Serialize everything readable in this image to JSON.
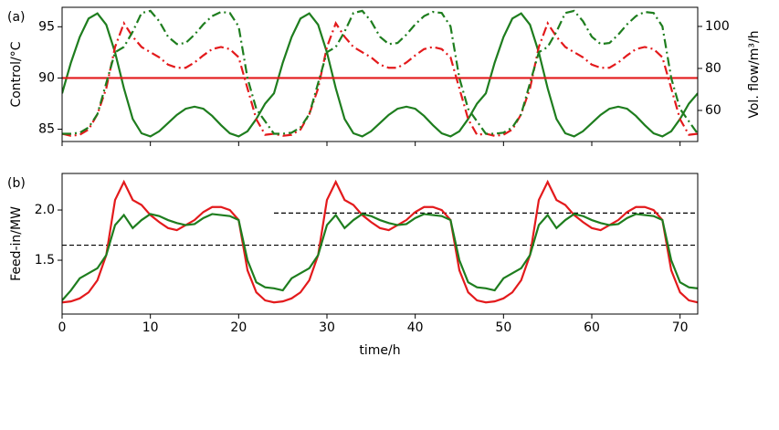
{
  "chart_data": [
    {
      "type": "line",
      "annotation": "(a)",
      "ylabel": "Control/°C",
      "y2label": "Vol. flow/m³/h",
      "xlim": [
        0,
        72
      ],
      "xticks": [
        0,
        10,
        20,
        30,
        40,
        50,
        60,
        70
      ],
      "xtick_labels": false,
      "ylim": [
        83.8,
        96.9
      ],
      "yticks": [
        85,
        90,
        95
      ],
      "y2lim": [
        45.2,
        109.1
      ],
      "y2ticks": [
        60,
        80,
        100
      ],
      "x": [
        0,
        1,
        2,
        3,
        4,
        5,
        6,
        7,
        8,
        9,
        10,
        11,
        12,
        13,
        14,
        15,
        16,
        17,
        18,
        19,
        20,
        21,
        22,
        23,
        24,
        25,
        26,
        27,
        28,
        29,
        30,
        31,
        32,
        33,
        34,
        35,
        36,
        37,
        38,
        39,
        40,
        41,
        42,
        43,
        44,
        45,
        46,
        47,
        48,
        49,
        50,
        51,
        52,
        53,
        54,
        55,
        56,
        57,
        58,
        59,
        60,
        61,
        62,
        63,
        64,
        65,
        66,
        67,
        68,
        69,
        70,
        71,
        72
      ],
      "series": [
        {
          "color": "#1e7d1e",
          "style": "solid",
          "values": [
            88.5,
            91.5,
            94,
            95.8,
            96.3,
            95.2,
            92.5,
            89,
            86,
            84.6,
            84.3,
            84.8,
            85.6,
            86.4,
            87,
            87.2,
            87,
            86.3,
            85.4,
            84.6,
            84.3,
            84.8,
            86,
            87.5,
            88.5,
            91.5,
            94,
            95.8,
            96.3,
            95.2,
            92.5,
            89,
            86,
            84.6,
            84.3,
            84.8,
            85.6,
            86.4,
            87,
            87.2,
            87,
            86.3,
            85.4,
            84.6,
            84.3,
            84.8,
            86,
            87.5,
            88.5,
            91.5,
            94,
            95.8,
            96.3,
            95.2,
            92.5,
            89,
            86,
            84.6,
            84.3,
            84.8,
            85.6,
            86.4,
            87,
            87.2,
            87,
            86.3,
            85.4,
            84.6,
            84.3,
            84.8,
            86,
            87.5,
            88.5
          ]
        },
        {
          "color": "#e31a1c",
          "style": "solid",
          "x": [
            0,
            72
          ],
          "values": [
            90,
            90
          ]
        },
        {
          "color": "#e31a1c",
          "style": "dashdot",
          "axis": "y2",
          "values": [
            48.9,
            47.9,
            48.4,
            50.9,
            58.2,
            70.5,
            90.2,
            101.5,
            95.1,
            90.2,
            87.7,
            85.3,
            81.8,
            80.3,
            80.3,
            82.8,
            86.2,
            89.2,
            90.2,
            89.2,
            85.3,
            70.5,
            55.8,
            48.4,
            48.9,
            47.9,
            48.4,
            50.9,
            58.2,
            70.5,
            90.2,
            101.5,
            95.1,
            90.2,
            87.7,
            85.3,
            81.8,
            80.3,
            80.3,
            82.8,
            86.2,
            89.2,
            90.2,
            89.2,
            85.3,
            70.5,
            55.8,
            48.4,
            48.9,
            47.9,
            48.4,
            50.9,
            58.2,
            70.5,
            90.2,
            101.5,
            95.1,
            90.2,
            87.7,
            85.3,
            81.8,
            80.3,
            80.3,
            82.8,
            86.2,
            89.2,
            90.2,
            89.2,
            85.3,
            70.5,
            55.8,
            48.4,
            48.9
          ]
        },
        {
          "color": "#1e7d1e",
          "style": "dashdot",
          "axis": "y2",
          "values": [
            48.9,
            48.9,
            49.4,
            51.9,
            58.2,
            73.0,
            87.7,
            90.2,
            97.5,
            106.4,
            107.4,
            102.5,
            95.1,
            91.6,
            92.1,
            96.1,
            101.0,
            104.9,
            106.9,
            106.4,
            100,
            75.4,
            60.7,
            54.8,
            48.9,
            48.9,
            49.4,
            51.9,
            58.2,
            73.0,
            87.7,
            90.2,
            97.5,
            106.4,
            107.4,
            102.5,
            95.1,
            91.6,
            92.1,
            96.1,
            101.0,
            104.9,
            106.9,
            106.4,
            100,
            75.4,
            60.7,
            54.8,
            48.9,
            48.9,
            49.4,
            51.9,
            58.2,
            73.0,
            87.7,
            90.2,
            97.5,
            106.4,
            107.4,
            102.5,
            95.1,
            91.6,
            92.1,
            96.1,
            101.0,
            104.9,
            106.9,
            106.4,
            100,
            75.4,
            60.7,
            54.8,
            48.9
          ]
        }
      ]
    },
    {
      "type": "line",
      "annotation": "(b)",
      "ylabel": "Feed-in/MW",
      "xlabel": "time/h",
      "xlim": [
        0,
        72
      ],
      "xticks": [
        0,
        10,
        20,
        30,
        40,
        50,
        60,
        70
      ],
      "ylim": [
        0.964,
        2.364
      ],
      "yticks": [
        1.5,
        {
          "value": 2,
          "label": "2.0"
        }
      ],
      "x": [
        0,
        1,
        2,
        3,
        4,
        5,
        6,
        7,
        8,
        9,
        10,
        11,
        12,
        13,
        14,
        15,
        16,
        17,
        18,
        19,
        20,
        21,
        22,
        23,
        24,
        25,
        26,
        27,
        28,
        29,
        30,
        31,
        32,
        33,
        34,
        35,
        36,
        37,
        38,
        39,
        40,
        41,
        42,
        43,
        44,
        45,
        46,
        47,
        48,
        49,
        50,
        51,
        52,
        53,
        54,
        55,
        56,
        57,
        58,
        59,
        60,
        61,
        62,
        63,
        64,
        65,
        66,
        67,
        68,
        69,
        70,
        71,
        72
      ],
      "series": [
        {
          "color": "#000000",
          "style": "dashed",
          "x": [
            0,
            72
          ],
          "values": [
            1.65,
            1.65
          ]
        },
        {
          "color": "#000000",
          "style": "dashed",
          "x": [
            24,
            72
          ],
          "values": [
            1.97,
            1.97
          ]
        },
        {
          "color": "#e31a1c",
          "style": "solid",
          "values": [
            1.08,
            1.09,
            1.12,
            1.18,
            1.3,
            1.55,
            2.1,
            2.28,
            2.1,
            2.05,
            1.95,
            1.88,
            1.82,
            1.8,
            1.85,
            1.9,
            1.98,
            2.03,
            2.03,
            2.0,
            1.9,
            1.4,
            1.18,
            1.1,
            1.08,
            1.09,
            1.12,
            1.18,
            1.3,
            1.55,
            2.1,
            2.28,
            2.1,
            2.05,
            1.95,
            1.88,
            1.82,
            1.8,
            1.85,
            1.9,
            1.98,
            2.03,
            2.03,
            2.0,
            1.9,
            1.4,
            1.18,
            1.1,
            1.08,
            1.09,
            1.12,
            1.18,
            1.3,
            1.55,
            2.1,
            2.28,
            2.1,
            2.05,
            1.95,
            1.88,
            1.82,
            1.8,
            1.85,
            1.9,
            1.98,
            2.03,
            2.03,
            2.0,
            1.9,
            1.4,
            1.18,
            1.1,
            1.08
          ]
        },
        {
          "color": "#1e7d1e",
          "style": "solid",
          "values": [
            1.1,
            1.2,
            1.32,
            1.37,
            1.42,
            1.55,
            1.85,
            1.95,
            1.82,
            1.9,
            1.96,
            1.94,
            1.9,
            1.87,
            1.85,
            1.86,
            1.92,
            1.96,
            1.95,
            1.94,
            1.9,
            1.5,
            1.28,
            1.23,
            1.22,
            1.2,
            1.32,
            1.37,
            1.42,
            1.55,
            1.85,
            1.95,
            1.82,
            1.9,
            1.96,
            1.94,
            1.9,
            1.87,
            1.85,
            1.86,
            1.92,
            1.96,
            1.95,
            1.94,
            1.9,
            1.5,
            1.28,
            1.23,
            1.22,
            1.2,
            1.32,
            1.37,
            1.42,
            1.55,
            1.85,
            1.95,
            1.82,
            1.9,
            1.96,
            1.94,
            1.9,
            1.87,
            1.85,
            1.86,
            1.92,
            1.96,
            1.95,
            1.94,
            1.9,
            1.5,
            1.28,
            1.23,
            1.22
          ]
        }
      ]
    }
  ]
}
